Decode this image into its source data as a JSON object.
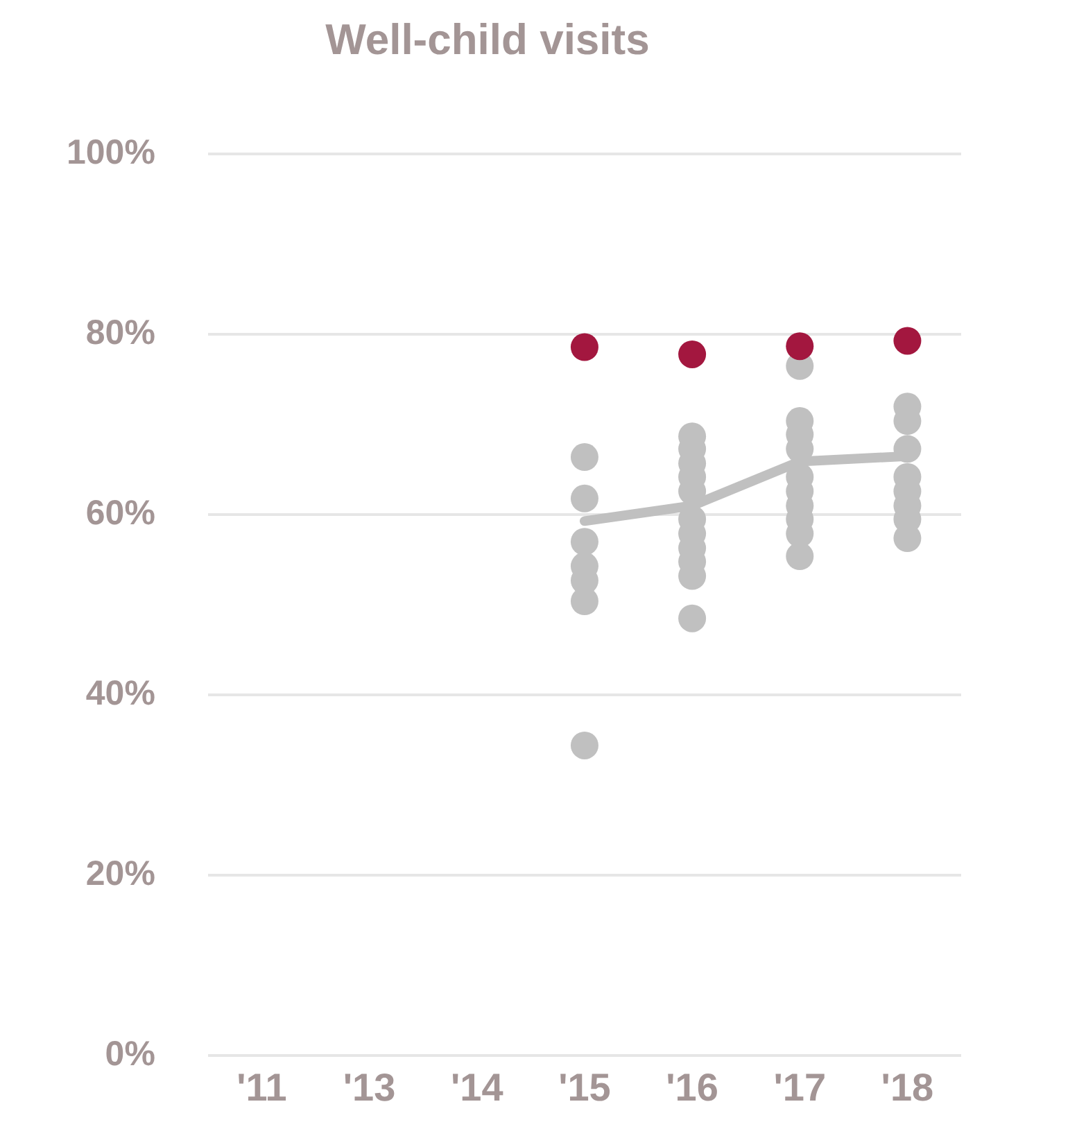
{
  "chart_data": {
    "type": "scatter",
    "title": "Well-child visits",
    "categories": [
      "'11",
      "'13",
      "'14",
      "'15",
      "'16",
      "'17",
      "'18"
    ],
    "ylim": [
      0,
      100
    ],
    "yticks": [
      {
        "value": 0,
        "label": "0%"
      },
      {
        "value": 20,
        "label": "20%"
      },
      {
        "value": 40,
        "label": "40%"
      },
      {
        "value": 60,
        "label": "60%"
      },
      {
        "value": 80,
        "label": "80%"
      },
      {
        "value": 100,
        "label": "100%"
      }
    ],
    "grid": "y",
    "marker": "circle",
    "series": [
      {
        "color": "#c0c0c0",
        "x": [
          "'15",
          "'15",
          "'15",
          "'15",
          "'15",
          "'15",
          "'15",
          "'16",
          "'16",
          "'16",
          "'16",
          "'16",
          "'16",
          "'16",
          "'16",
          "'16",
          "'16",
          "'16",
          "'17",
          "'17",
          "'17",
          "'17",
          "'17",
          "'17",
          "'17",
          "'17",
          "'17",
          "'17",
          "'18",
          "'18",
          "'18",
          "'18",
          "'18",
          "'18",
          "'18",
          "'18"
        ],
        "values": [
          66.4,
          61.8,
          57,
          54.3,
          52.7,
          50.4,
          34.4,
          68.7,
          67.3,
          65.7,
          64.2,
          62.6,
          59.5,
          57.9,
          56.3,
          54.8,
          53.2,
          48.5,
          76.5,
          70.4,
          68.9,
          67.3,
          64.2,
          62.6,
          61,
          59.5,
          57.9,
          55.4,
          72,
          70.4,
          67.3,
          64.2,
          62.6,
          61,
          59.5,
          57.4
        ]
      },
      {
        "type": "line",
        "marker": "none",
        "color": "#c0c0c0",
        "x": [
          "'15",
          "'16",
          "'17",
          "'18"
        ],
        "values": [
          59.3,
          61,
          65.9,
          66.5
        ]
      },
      {
        "color": "#a3173f",
        "x": [
          "'15",
          "'16",
          "'17",
          "'18"
        ],
        "values": [
          78.6,
          77.8,
          78.7,
          79.3
        ]
      }
    ]
  }
}
